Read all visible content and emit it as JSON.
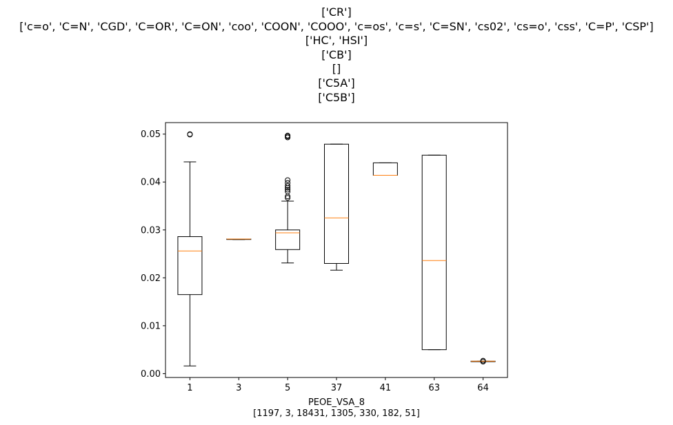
{
  "chart_data": {
    "type": "box",
    "title_lines": [
      "['CR']",
      "['c=o', 'C=N', 'CGD', 'C=OR', 'C=ON', 'coo', 'COON', 'COOO', 'c=os', 'c=s', 'C=SN', 'cs02', 'cs=o', 'css', 'C=P', 'CSP']",
      "['HC', 'HSI']",
      "['CB']",
      "[]",
      "['C5A']",
      "['C5B']"
    ],
    "xlabel": "PEOE_VSA_8",
    "xlabel_sub": "[1197, 3, 18431, 1305, 330, 182, 51]",
    "ylabel": "",
    "ylim": [
      -0.0008,
      0.0524
    ],
    "yticks": [
      0.0,
      0.01,
      0.02,
      0.03,
      0.04,
      0.05
    ],
    "ytick_labels": [
      "0.00",
      "0.01",
      "0.02",
      "0.03",
      "0.04",
      "0.05"
    ],
    "categories": [
      "1",
      "3",
      "5",
      "37",
      "41",
      "63",
      "64"
    ],
    "boxes": [
      {
        "label": "1",
        "whisker_low": 0.0016,
        "q1": 0.0165,
        "median": 0.0256,
        "q3": 0.0286,
        "whisker_high": 0.0442,
        "fliers": [
          0.0499,
          0.05
        ]
      },
      {
        "label": "3",
        "whisker_low": 0.028,
        "q1": 0.028,
        "median": 0.0281,
        "q3": 0.0281,
        "whisker_high": 0.0281,
        "fliers": []
      },
      {
        "label": "5",
        "whisker_low": 0.0231,
        "q1": 0.0259,
        "median": 0.0294,
        "q3": 0.03,
        "whisker_high": 0.036,
        "fliers": [
          0.0367,
          0.037,
          0.038,
          0.0384,
          0.0388,
          0.0392,
          0.0398,
          0.0404,
          0.0493,
          0.0495,
          0.0497
        ]
      },
      {
        "label": "37",
        "whisker_low": 0.0216,
        "q1": 0.023,
        "median": 0.0325,
        "q3": 0.0479,
        "whisker_high": 0.0479,
        "fliers": []
      },
      {
        "label": "41",
        "whisker_low": 0.0414,
        "q1": 0.0414,
        "median": 0.0414,
        "q3": 0.044,
        "whisker_high": 0.044,
        "fliers": []
      },
      {
        "label": "63",
        "whisker_low": 0.005,
        "q1": 0.005,
        "median": 0.0236,
        "q3": 0.0456,
        "whisker_high": 0.0456,
        "fliers": []
      },
      {
        "label": "64",
        "whisker_low": 0.0025,
        "q1": 0.0025,
        "median": 0.0026,
        "q3": 0.0026,
        "whisker_high": 0.0026,
        "fliers": [
          0.0025,
          0.0027
        ]
      }
    ],
    "box_color": "#000000",
    "median_color": "#ff7f0e",
    "grid": false,
    "legend": "none"
  }
}
